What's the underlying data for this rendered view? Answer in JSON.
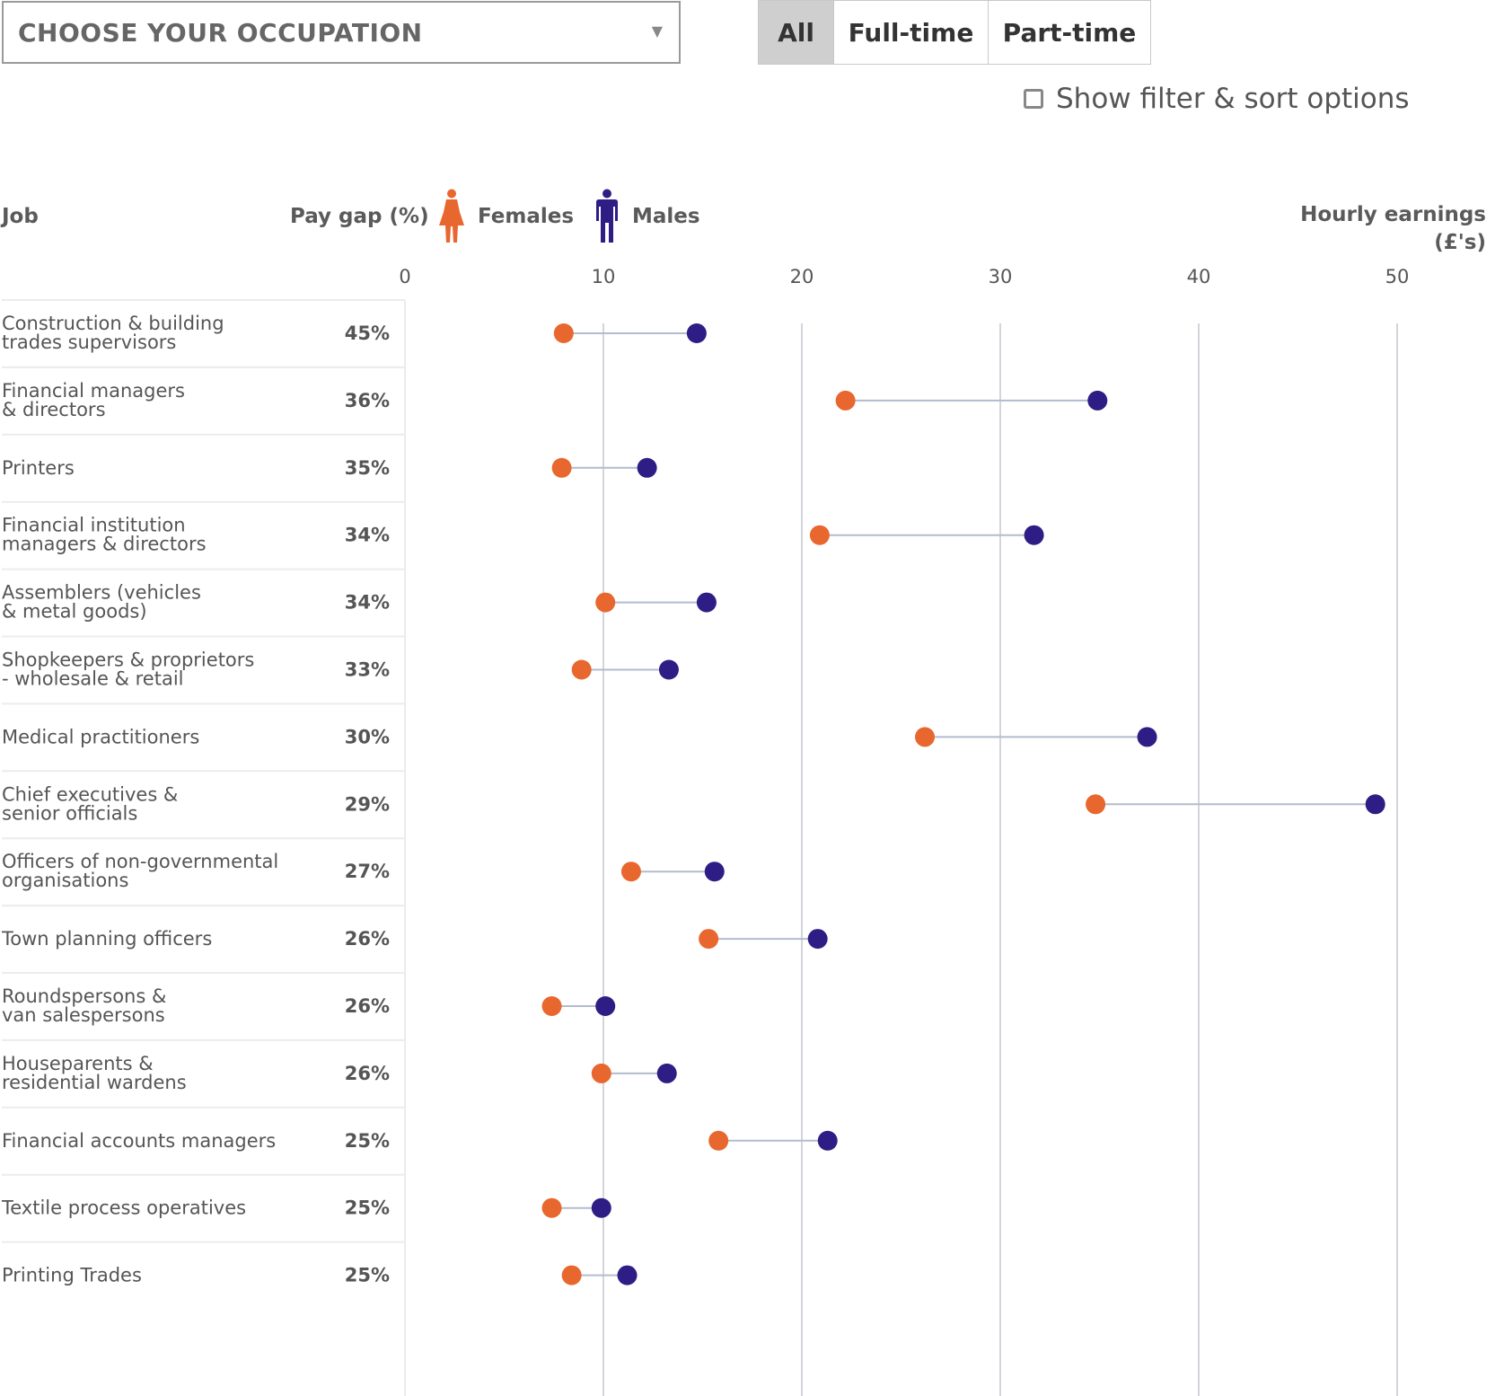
{
  "controls": {
    "dropdown_label": "CHOOSE YOUR OCCUPATION",
    "dropdown_arrow": "▼",
    "buttons": [
      "All",
      "Full-time",
      "Part-time"
    ],
    "active_button": "All",
    "filter_label": "Show filter & sort options",
    "filter_checked": false
  },
  "headers": {
    "job": "Job",
    "pay_gap": "Pay gap (%)",
    "hourly_line1": "Hourly earnings",
    "hourly_line2": "(£'s)"
  },
  "legend": {
    "female_label": "Females",
    "male_label": "Males",
    "female_icon": "female-person-icon",
    "male_icon": "male-person-icon"
  },
  "colors": {
    "female": "#e8672f",
    "male": "#2e1d85",
    "connector": "#b3bccd",
    "gridline": "#c3c7cf",
    "row_divider": "#ececec"
  },
  "chart_data": {
    "type": "dumbbell",
    "xlabel": "Hourly earnings (£'s)",
    "xlim": [
      0,
      50
    ],
    "xticks": [
      0,
      10,
      20,
      30,
      40,
      50
    ],
    "series": [
      {
        "name": "Females",
        "key": "female"
      },
      {
        "name": "Males",
        "key": "male"
      }
    ],
    "rows": [
      {
        "job": [
          "Construction & building",
          "trades supervisors"
        ],
        "gap": "45%",
        "female": 8.0,
        "male": 14.7
      },
      {
        "job": [
          "Financial managers",
          "& directors"
        ],
        "gap": "36%",
        "female": 22.2,
        "male": 34.9
      },
      {
        "job": [
          "Printers"
        ],
        "gap": "35%",
        "female": 7.9,
        "male": 12.2
      },
      {
        "job": [
          "Financial institution",
          "managers & directors"
        ],
        "gap": "34%",
        "female": 20.9,
        "male": 31.7
      },
      {
        "job": [
          "Assemblers (vehicles",
          "& metal goods)"
        ],
        "gap": "34%",
        "female": 10.1,
        "male": 15.2
      },
      {
        "job": [
          "Shopkeepers & proprietors",
          "- wholesale & retail"
        ],
        "gap": "33%",
        "female": 8.9,
        "male": 13.3
      },
      {
        "job": [
          "Medical practitioners"
        ],
        "gap": "30%",
        "female": 26.2,
        "male": 37.4
      },
      {
        "job": [
          "Chief executives &",
          "senior officials"
        ],
        "gap": "29%",
        "female": 34.8,
        "male": 48.9
      },
      {
        "job": [
          "Officers of non-governmental",
          "organisations"
        ],
        "gap": "27%",
        "female": 11.4,
        "male": 15.6
      },
      {
        "job": [
          "Town planning officers"
        ],
        "gap": "26%",
        "female": 15.3,
        "male": 20.8
      },
      {
        "job": [
          "Roundspersons &",
          "van salespersons"
        ],
        "gap": "26%",
        "female": 7.4,
        "male": 10.1
      },
      {
        "job": [
          "Houseparents &",
          "residential wardens"
        ],
        "gap": "26%",
        "female": 9.9,
        "male": 13.2
      },
      {
        "job": [
          "Financial accounts managers"
        ],
        "gap": "25%",
        "female": 15.8,
        "male": 21.3
      },
      {
        "job": [
          "Textile process operatives"
        ],
        "gap": "25%",
        "female": 7.4,
        "male": 9.9
      },
      {
        "job": [
          "Printing Trades"
        ],
        "gap": "25%",
        "female": 8.4,
        "male": 11.2
      }
    ]
  }
}
